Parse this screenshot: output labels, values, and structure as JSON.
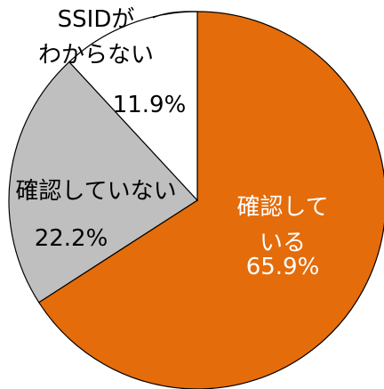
{
  "chart_data": {
    "type": "pie",
    "categories": [
      "確認している",
      "確認していない",
      "SSIDが\nわからない"
    ],
    "values": [
      65.9,
      22.2,
      11.9
    ],
    "value_labels": [
      "65.9%",
      "22.2%",
      "11.9%"
    ],
    "colors": [
      "#e46c0a",
      "#bfbfbf",
      "#ffffff"
    ]
  }
}
